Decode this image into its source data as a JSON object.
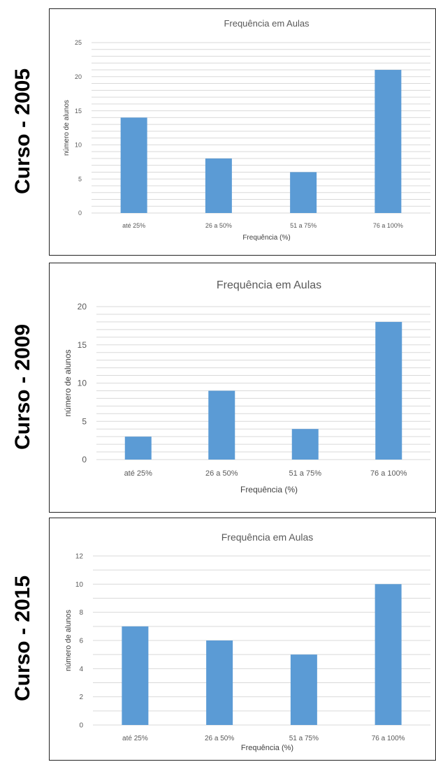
{
  "side_labels": [
    "Curso - 2005",
    "Curso - 2009",
    "Curso - 2015"
  ],
  "chart_data": [
    {
      "type": "bar",
      "title": "Frequência em Aulas",
      "xlabel": "Frequência (%)",
      "ylabel": "número de alunos",
      "categories": [
        "até 25%",
        "26 a 50%",
        "51 a 75%",
        "76 a 100%"
      ],
      "values": [
        14,
        8,
        6,
        21
      ],
      "ylim": [
        0,
        25
      ],
      "yticks": [
        0,
        5,
        10,
        15,
        20,
        25
      ],
      "grid": true,
      "color": "#5b9bd5"
    },
    {
      "type": "bar",
      "title": "Frequência em Aulas",
      "xlabel": "Frequência (%)",
      "ylabel": "número de alunos",
      "categories": [
        "até 25%",
        "26 a 50%",
        "51 a 75%",
        "76 a 100%"
      ],
      "values": [
        3,
        9,
        4,
        18
      ],
      "ylim": [
        0,
        20
      ],
      "yticks": [
        0,
        5,
        10,
        15,
        20
      ],
      "grid": true,
      "color": "#5b9bd5"
    },
    {
      "type": "bar",
      "title": "Frequência em Aulas",
      "xlabel": "Frequência (%)",
      "ylabel": "número de alunos",
      "categories": [
        "até 25%",
        "26 a 50%",
        "51 a 75%",
        "76 a 100%"
      ],
      "values": [
        7,
        6,
        5,
        10
      ],
      "ylim": [
        0,
        12
      ],
      "yticks": [
        0,
        2,
        4,
        6,
        8,
        10,
        12
      ],
      "grid": true,
      "color": "#5b9bd5"
    }
  ]
}
